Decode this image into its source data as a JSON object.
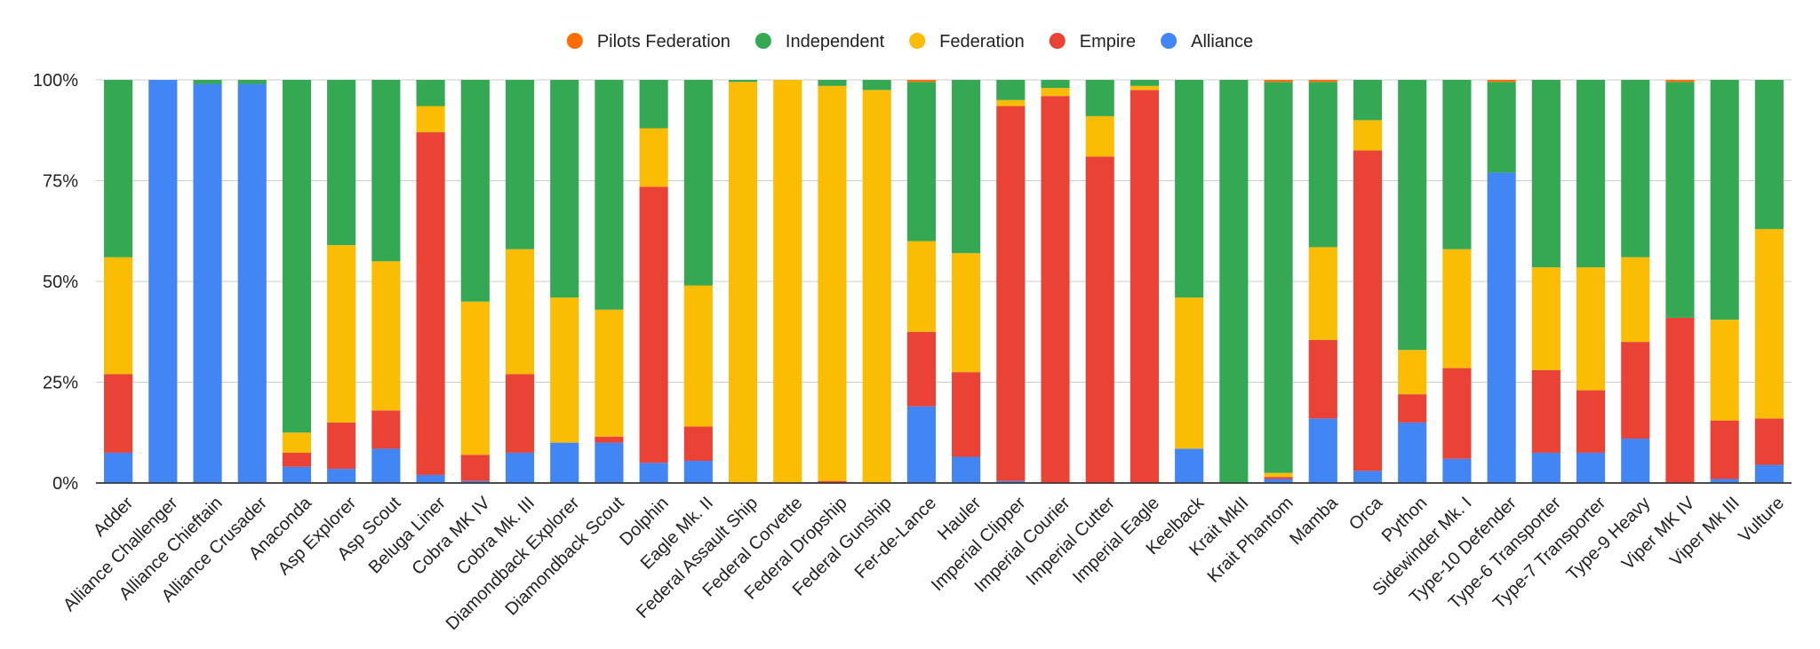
{
  "chart_data": {
    "type": "bar",
    "stacked": "percent",
    "title": "",
    "xlabel": "",
    "ylabel": "",
    "ylim": [
      0,
      100
    ],
    "y_ticks": [
      "0%",
      "25%",
      "50%",
      "75%",
      "100%"
    ],
    "legend_position": "top-center",
    "grid": true,
    "categories": [
      "Adder",
      "Alliance Challenger",
      "Alliance Chieftain",
      "Alliance Crusader",
      "Anaconda",
      "Asp Explorer",
      "Asp Scout",
      "Beluga Liner",
      "Cobra MK IV",
      "Cobra Mk. III",
      "Diamondback Explorer",
      "Diamondback Scout",
      "Dolphin",
      "Eagle Mk. II",
      "Federal Assault Ship",
      "Federal Corvette",
      "Federal Dropship",
      "Federal Gunship",
      "Fer-de-Lance",
      "Hauler",
      "Imperial Clipper",
      "Imperial Courier",
      "Imperial Cutter",
      "Imperial Eagle",
      "Keelback",
      "Krait MkII",
      "Krait Phantom",
      "Mamba",
      "Orca",
      "Python",
      "Sidewinder Mk. I",
      "Type-10 Defender",
      "Type-6 Transporter",
      "Type-7 Transporter",
      "Type-9 Heavy",
      "Viper MK IV",
      "Viper Mk III",
      "Vulture"
    ],
    "series": [
      {
        "name": "Alliance",
        "color": "#4285f4",
        "values": [
          7.5,
          100,
          99,
          99,
          4,
          3.5,
          8.5,
          2,
          0.5,
          7.5,
          10,
          10,
          5,
          5.5,
          0,
          0,
          0,
          0,
          19,
          6.5,
          0.5,
          0,
          0,
          0,
          8.5,
          0,
          1,
          16,
          3,
          15,
          6,
          77,
          7.5,
          7.5,
          11,
          0,
          1,
          4.5
        ]
      },
      {
        "name": "Empire",
        "color": "#ea4335",
        "values": [
          19.5,
          0,
          0,
          0,
          3.5,
          11.5,
          9.5,
          85,
          6.5,
          19.5,
          0,
          1.5,
          68.5,
          8.5,
          0,
          0,
          0.5,
          0,
          18.5,
          21,
          93,
          96,
          81,
          97.5,
          0,
          0,
          0.5,
          19.5,
          79.5,
          7,
          22.5,
          0,
          20.5,
          15.5,
          24,
          41,
          14.5,
          11.5
        ]
      },
      {
        "name": "Federation",
        "color": "#fbbc04",
        "values": [
          29,
          0,
          0,
          0,
          5,
          44,
          37,
          6.5,
          38,
          31,
          36,
          31.5,
          14.5,
          35,
          99.5,
          100,
          98,
          97.5,
          22.5,
          29.5,
          1.5,
          2,
          10,
          1,
          37.5,
          0,
          1,
          23,
          7.5,
          11,
          29.5,
          0,
          25.5,
          30.5,
          21,
          0,
          25,
          47
        ]
      },
      {
        "name": "Independent",
        "color": "#34a853",
        "values": [
          44,
          0,
          1,
          1,
          87.5,
          41,
          45,
          6.5,
          55,
          42,
          54,
          57,
          12,
          51,
          0.5,
          0,
          1.5,
          2.5,
          39.5,
          43,
          5,
          2,
          9,
          1.5,
          54,
          100,
          97,
          41,
          10,
          67,
          42,
          22.5,
          46.5,
          46.5,
          44,
          58.5,
          59.5,
          37
        ]
      },
      {
        "name": "Pilots Federation",
        "color": "#ff6d01",
        "values": [
          0,
          0,
          0,
          0,
          0,
          0,
          0,
          0,
          0,
          0,
          0,
          0,
          0,
          0,
          0,
          0,
          0,
          0,
          0.5,
          0,
          0,
          0,
          0,
          0,
          0,
          0,
          0.5,
          0.5,
          0,
          0,
          0,
          0.5,
          0,
          0,
          0,
          0.5,
          0,
          0
        ]
      }
    ],
    "legend": [
      "Pilots Federation",
      "Independent",
      "Federation",
      "Empire",
      "Alliance"
    ]
  }
}
